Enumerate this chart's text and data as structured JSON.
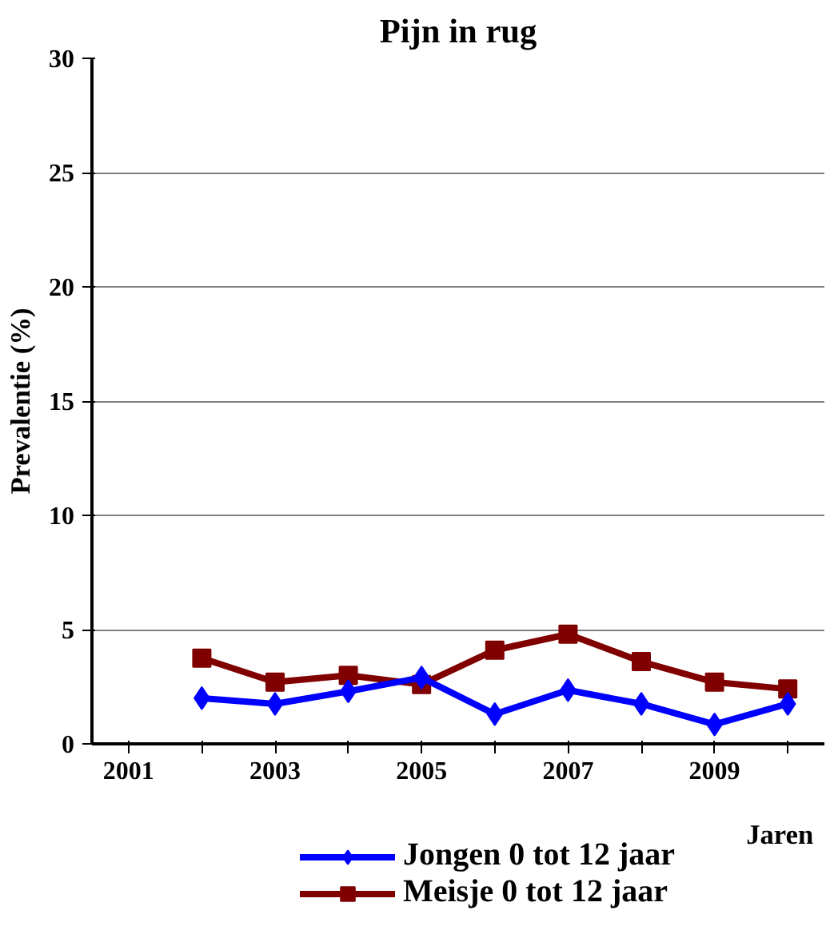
{
  "chart_data": {
    "type": "line",
    "title": "Pijn in rug",
    "xlabel": "Jaren",
    "ylabel": "Prevalentie (%)",
    "categories": [
      "2001",
      null,
      "2003",
      null,
      "2005",
      null,
      "2007",
      null,
      "2009",
      null
    ],
    "series": [
      {
        "name": "Jongen 0 tot 12 jaar",
        "color": "#0000ff",
        "marker": "diamond",
        "values": [
          null,
          2.0,
          1.75,
          2.3,
          2.9,
          1.3,
          2.35,
          1.75,
          0.85,
          1.75
        ]
      },
      {
        "name": "Meisje 0 tot 12 jaar",
        "color": "#800000",
        "marker": "square",
        "values": [
          null,
          3.75,
          2.7,
          3.0,
          2.6,
          4.1,
          4.8,
          3.6,
          2.7,
          2.4
        ]
      }
    ],
    "ylim": [
      0,
      30
    ],
    "yticks": [
      0,
      5,
      10,
      15,
      20,
      25,
      30
    ],
    "grid": "y",
    "legend": "bottom",
    "line_style": "solid"
  }
}
